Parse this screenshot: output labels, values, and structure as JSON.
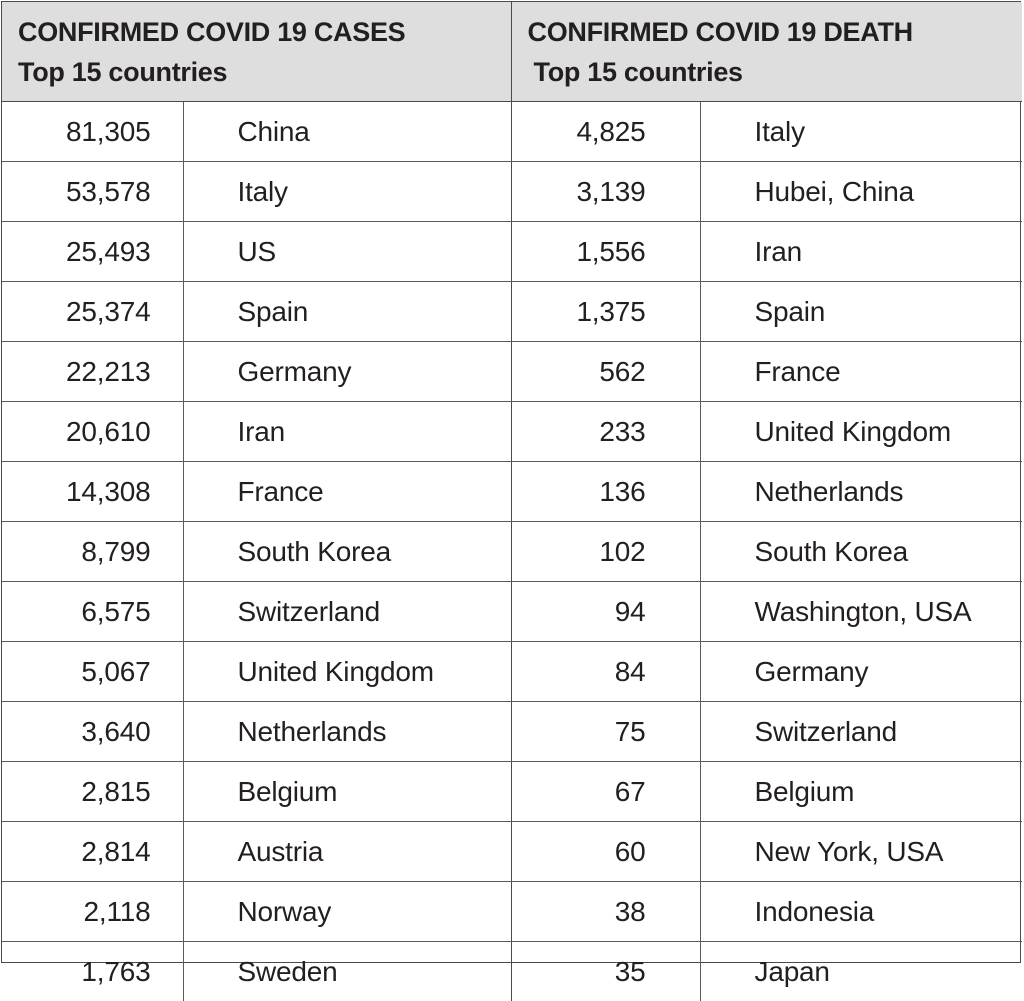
{
  "cases": {
    "title": "CONFIRMED COVID 19 CASES",
    "subtitle": "Top 15 countries",
    "rows": [
      {
        "count": "81,305",
        "country": "China"
      },
      {
        "count": "53,578",
        "country": "Italy"
      },
      {
        "count": "25,493",
        "country": "US"
      },
      {
        "count": "25,374",
        "country": "Spain"
      },
      {
        "count": "22,213",
        "country": "Germany"
      },
      {
        "count": "20,610",
        "country": "Iran"
      },
      {
        "count": "14,308",
        "country": "France"
      },
      {
        "count": "8,799",
        "country": "South Korea"
      },
      {
        "count": "6,575",
        "country": "Switzerland"
      },
      {
        "count": "5,067",
        "country": "United Kingdom"
      },
      {
        "count": "3,640",
        "country": "Netherlands"
      },
      {
        "count": "2,815",
        "country": "Belgium"
      },
      {
        "count": "2,814",
        "country": "Austria"
      },
      {
        "count": "2,118",
        "country": "Norway"
      },
      {
        "count": "1,763",
        "country": "Sweden"
      }
    ]
  },
  "deaths": {
    "title": "CONFIRMED COVID 19 DEATH",
    "subtitle": "Top 15 countries",
    "rows": [
      {
        "count": "4,825",
        "country": "Italy"
      },
      {
        "count": "3,139",
        "country": "Hubei, China"
      },
      {
        "count": "1,556",
        "country": "Iran"
      },
      {
        "count": "1,375",
        "country": "Spain"
      },
      {
        "count": "562",
        "country": "France"
      },
      {
        "count": "233",
        "country": "United Kingdom"
      },
      {
        "count": "136",
        "country": "Netherlands"
      },
      {
        "count": "102",
        "country": "South Korea"
      },
      {
        "count": "94",
        "country": "Washington, USA"
      },
      {
        "count": "84",
        "country": "Germany"
      },
      {
        "count": "75",
        "country": "Switzerland"
      },
      {
        "count": "67",
        "country": "Belgium"
      },
      {
        "count": "60",
        "country": "New York, USA"
      },
      {
        "count": "38",
        "country": "Indonesia"
      },
      {
        "count": "35",
        "country": "Japan"
      }
    ]
  }
}
